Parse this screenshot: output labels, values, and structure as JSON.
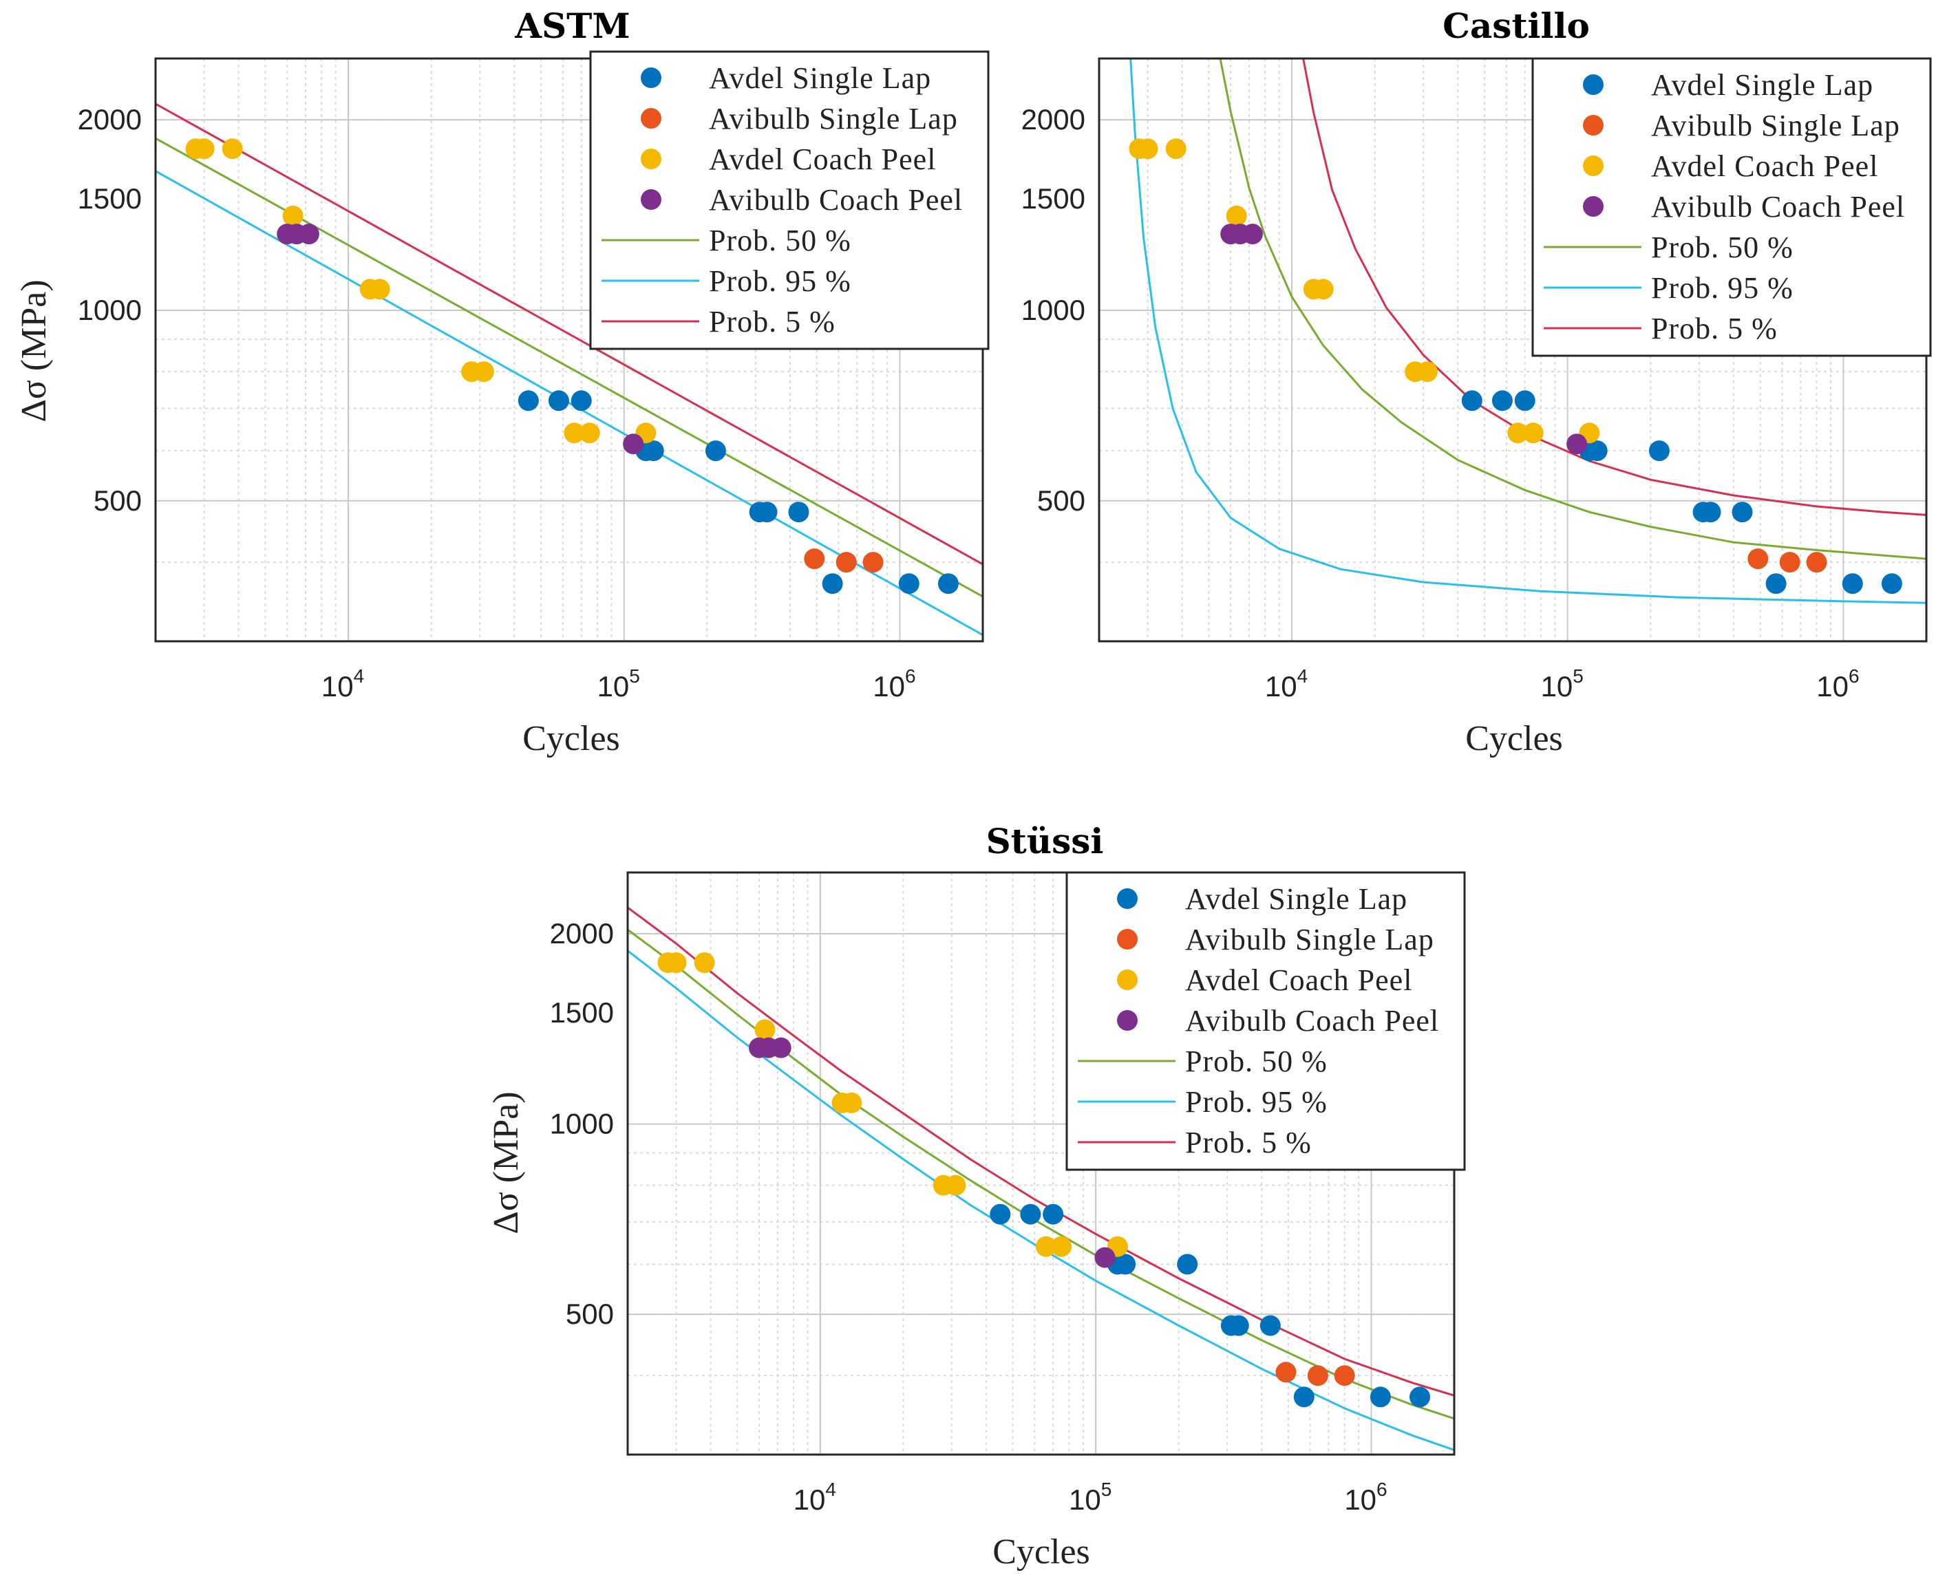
{
  "colors": {
    "avdel_single_lap": "#0072BD",
    "avibulb_single_lap": "#E8541C",
    "avdel_coach_peel": "#F5B800",
    "avibulb_coach_peel": "#7E2F8E",
    "prob_50": "#77AC30",
    "prob_95": "#29BFEA",
    "prob_5": "#D62F4F"
  },
  "chart_data": [
    {
      "type": "scatter",
      "title": "ASTM",
      "xlabel": "Cycles",
      "ylabel": "Δσ (MPa)",
      "xscale": "log",
      "yscale": "log",
      "xlim": [
        2000,
        2000000
      ],
      "ylim": [
        300,
        2500
      ],
      "grid": true,
      "legend_position": "top-right",
      "x_ticks": [
        {
          "value": 10000,
          "base": "10",
          "exp": "4"
        },
        {
          "value": 100000,
          "base": "10",
          "exp": "5"
        },
        {
          "value": 1000000,
          "base": "10",
          "exp": "6"
        }
      ],
      "y_ticks": [
        {
          "value": 500,
          "label": "500"
        },
        {
          "value": 1000,
          "label": "1000"
        },
        {
          "value": 1500,
          "label": "1500"
        },
        {
          "value": 2000,
          "label": "2000"
        }
      ],
      "legend": [
        "Avdel Single Lap",
        "Avibulb Single Lap",
        "Avdel Coach Peel",
        "Avibulb Coach Peel",
        "Prob. 50 %",
        "Prob. 95 %",
        "Prob. 5 %"
      ],
      "series": [
        {
          "name": "Avdel Single Lap",
          "kind": "points",
          "color_key": "avdel_single_lap",
          "x": [
            45000,
            58000,
            70000,
            120000,
            128000,
            215000,
            310000,
            330000,
            430000,
            570000,
            1080000,
            1500000
          ],
          "y": [
            720,
            720,
            720,
            600,
            600,
            600,
            480,
            480,
            480,
            370,
            370,
            370
          ]
        },
        {
          "name": "Avibulb Single Lap",
          "kind": "points",
          "color_key": "avibulb_single_lap",
          "x": [
            490000,
            640000,
            800000
          ],
          "y": [
            405,
            400,
            400
          ]
        },
        {
          "name": "Avdel Coach Peel",
          "kind": "points",
          "color_key": "avdel_coach_peel",
          "x": [
            2800,
            3000,
            3800,
            6300,
            12000,
            13000,
            28000,
            31000,
            66000,
            75000,
            120000
          ],
          "y": [
            1800,
            1800,
            1800,
            1410,
            1080,
            1080,
            800,
            800,
            640,
            640,
            640
          ]
        },
        {
          "name": "Avibulb Coach Peel",
          "kind": "points",
          "color_key": "avibulb_coach_peel",
          "x": [
            6000,
            6500,
            7200,
            108000
          ],
          "y": [
            1320,
            1320,
            1320,
            615
          ]
        },
        {
          "name": "Prob. 50 %",
          "kind": "line",
          "color_key": "prob_50",
          "x": [
            2000,
            2000000
          ],
          "y": [
            1870,
            353
          ]
        },
        {
          "name": "Prob. 95 %",
          "kind": "line",
          "color_key": "prob_95",
          "x": [
            2000,
            2000000
          ],
          "y": [
            1660,
            307
          ]
        },
        {
          "name": "Prob. 5 %",
          "kind": "line",
          "color_key": "prob_5",
          "x": [
            2000,
            2000000
          ],
          "y": [
            2120,
            397
          ]
        }
      ]
    },
    {
      "type": "scatter",
      "title": "Castillo",
      "xlabel": "Cycles",
      "ylabel": "",
      "xscale": "log",
      "yscale": "log",
      "xlim": [
        2000,
        2000000
      ],
      "ylim": [
        300,
        2500
      ],
      "grid": true,
      "legend_position": "top-right",
      "x_ticks": [
        {
          "value": 10000,
          "base": "10",
          "exp": "4"
        },
        {
          "value": 100000,
          "base": "10",
          "exp": "5"
        },
        {
          "value": 1000000,
          "base": "10",
          "exp": "6"
        }
      ],
      "y_ticks": [
        {
          "value": 500,
          "label": "500"
        },
        {
          "value": 1000,
          "label": "1000"
        },
        {
          "value": 1500,
          "label": "1500"
        },
        {
          "value": 2000,
          "label": "2000"
        }
      ],
      "legend": [
        "Avdel Single Lap",
        "Avibulb Single Lap",
        "Avdel Coach Peel",
        "Avibulb Coach Peel",
        "Prob. 50 %",
        "Prob. 95 %",
        "Prob. 5 %"
      ],
      "series": [
        {
          "name": "Avdel Single Lap",
          "kind": "points",
          "color_key": "avdel_single_lap",
          "x": [
            45000,
            58000,
            70000,
            120000,
            128000,
            215000,
            310000,
            330000,
            430000,
            570000,
            1080000,
            1500000
          ],
          "y": [
            720,
            720,
            720,
            600,
            600,
            600,
            480,
            480,
            480,
            370,
            370,
            370
          ]
        },
        {
          "name": "Avibulb Single Lap",
          "kind": "points",
          "color_key": "avibulb_single_lap",
          "x": [
            490000,
            640000,
            800000
          ],
          "y": [
            405,
            400,
            400
          ]
        },
        {
          "name": "Avdel Coach Peel",
          "kind": "points",
          "color_key": "avdel_coach_peel",
          "x": [
            2800,
            3000,
            3800,
            6300,
            12000,
            13000,
            28000,
            31000,
            66000,
            75000,
            120000
          ],
          "y": [
            1800,
            1800,
            1800,
            1410,
            1080,
            1080,
            800,
            800,
            640,
            640,
            640
          ]
        },
        {
          "name": "Avibulb Coach Peel",
          "kind": "points",
          "color_key": "avibulb_coach_peel",
          "x": [
            6000,
            6500,
            7200,
            108000
          ],
          "y": [
            1320,
            1320,
            1320,
            615
          ]
        },
        {
          "name": "Prob. 50 %",
          "kind": "line",
          "color_key": "prob_50",
          "x": [
            5500,
            6000,
            7000,
            8000,
            10000,
            13000,
            18000,
            25000,
            40000,
            70000,
            120000,
            200000,
            400000,
            800000,
            1400000,
            2000000
          ],
          "y": [
            2500,
            2060,
            1560,
            1310,
            1050,
            880,
            750,
            665,
            580,
            520,
            480,
            455,
            430,
            418,
            410,
            405
          ]
        },
        {
          "name": "Prob. 95 %",
          "kind": "line",
          "color_key": "prob_95",
          "x": [
            2600,
            2700,
            2900,
            3200,
            3700,
            4500,
            6000,
            9000,
            15000,
            30000,
            80000,
            250000,
            1000000,
            2000000
          ],
          "y": [
            2500,
            1900,
            1300,
            940,
            700,
            555,
            470,
            420,
            390,
            372,
            360,
            352,
            347,
            345
          ]
        },
        {
          "name": "Prob. 5 %",
          "kind": "line",
          "color_key": "prob_5",
          "x": [
            11000,
            12000,
            14000,
            17000,
            22000,
            30000,
            45000,
            70000,
            120000,
            200000,
            400000,
            800000,
            1400000,
            2000000
          ],
          "y": [
            2500,
            2050,
            1550,
            1250,
            1010,
            850,
            720,
            640,
            578,
            540,
            510,
            490,
            480,
            475
          ]
        }
      ]
    },
    {
      "type": "scatter",
      "title": "Stüssi",
      "xlabel": "Cycles",
      "ylabel": "Δσ (MPa)",
      "xscale": "log",
      "yscale": "log",
      "xlim": [
        2000,
        2000000
      ],
      "ylim": [
        300,
        2500
      ],
      "grid": true,
      "legend_position": "top-right",
      "x_ticks": [
        {
          "value": 10000,
          "base": "10",
          "exp": "4"
        },
        {
          "value": 100000,
          "base": "10",
          "exp": "5"
        },
        {
          "value": 1000000,
          "base": "10",
          "exp": "6"
        }
      ],
      "y_ticks": [
        {
          "value": 500,
          "label": "500"
        },
        {
          "value": 1000,
          "label": "1000"
        },
        {
          "value": 1500,
          "label": "1500"
        },
        {
          "value": 2000,
          "label": "2000"
        }
      ],
      "legend": [
        "Avdel Single Lap",
        "Avibulb Single Lap",
        "Avdel Coach Peel",
        "Avibulb Coach Peel",
        "Prob. 50 %",
        "Prob. 95 %",
        "Prob. 5 %"
      ],
      "series": [
        {
          "name": "Avdel Single Lap",
          "kind": "points",
          "color_key": "avdel_single_lap",
          "x": [
            45000,
            58000,
            70000,
            120000,
            128000,
            215000,
            310000,
            330000,
            430000,
            570000,
            1080000,
            1500000
          ],
          "y": [
            720,
            720,
            720,
            600,
            600,
            600,
            480,
            480,
            480,
            370,
            370,
            370
          ]
        },
        {
          "name": "Avibulb Single Lap",
          "kind": "points",
          "color_key": "avibulb_single_lap",
          "x": [
            490000,
            640000,
            800000
          ],
          "y": [
            405,
            400,
            400
          ]
        },
        {
          "name": "Avdel Coach Peel",
          "kind": "points",
          "color_key": "avdel_coach_peel",
          "x": [
            2800,
            3000,
            3800,
            6300,
            12000,
            13000,
            28000,
            31000,
            66000,
            75000,
            120000
          ],
          "y": [
            1800,
            1800,
            1800,
            1410,
            1080,
            1080,
            800,
            800,
            640,
            640,
            640
          ]
        },
        {
          "name": "Avibulb Coach Peel",
          "kind": "points",
          "color_key": "avibulb_coach_peel",
          "x": [
            6000,
            6500,
            7200,
            108000
          ],
          "y": [
            1320,
            1320,
            1320,
            615
          ]
        },
        {
          "name": "Prob. 50 %",
          "kind": "line",
          "color_key": "prob_50",
          "x": [
            2000,
            3000,
            5000,
            8000,
            12000,
            20000,
            35000,
            60000,
            100000,
            200000,
            400000,
            800000,
            1400000,
            2000000
          ],
          "y": [
            2030,
            1780,
            1490,
            1270,
            1110,
            955,
            815,
            705,
            620,
            530,
            455,
            395,
            360,
            342
          ]
        },
        {
          "name": "Prob. 95 %",
          "kind": "line",
          "color_key": "prob_95",
          "x": [
            2000,
            3000,
            5000,
            8000,
            12000,
            20000,
            35000,
            60000,
            100000,
            200000,
            400000,
            800000,
            1400000,
            2000000
          ],
          "y": [
            1880,
            1640,
            1370,
            1175,
            1030,
            880,
            745,
            645,
            565,
            480,
            410,
            355,
            322,
            305
          ]
        },
        {
          "name": "Prob. 5 %",
          "kind": "line",
          "color_key": "prob_5",
          "x": [
            2000,
            3000,
            5000,
            8000,
            12000,
            20000,
            35000,
            60000,
            100000,
            200000,
            400000,
            800000,
            1400000,
            2000000
          ],
          "y": [
            2200,
            1930,
            1610,
            1380,
            1210,
            1040,
            880,
            760,
            670,
            570,
            490,
            425,
            390,
            372
          ]
        }
      ]
    }
  ]
}
